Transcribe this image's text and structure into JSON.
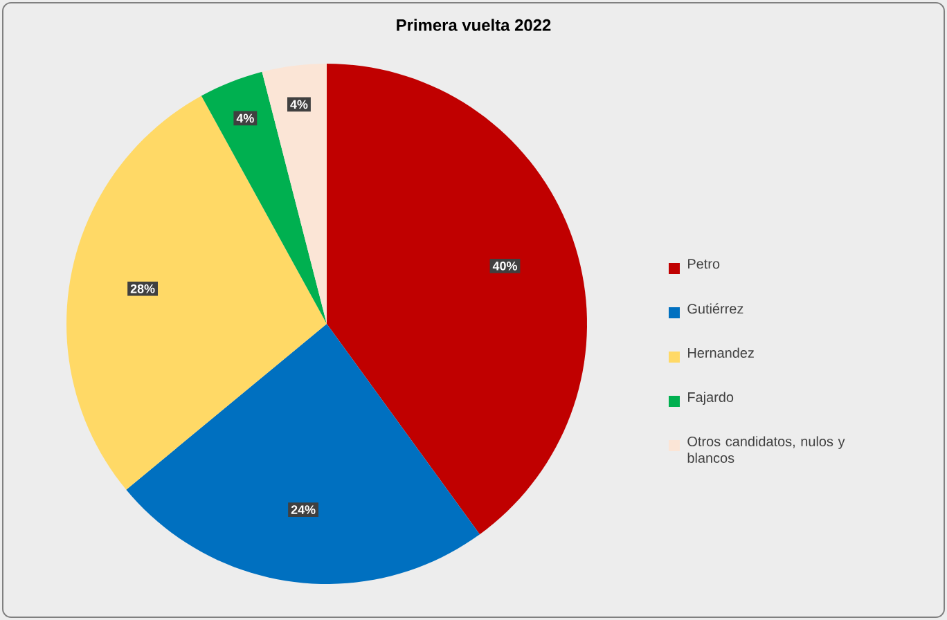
{
  "chart_data": {
    "type": "pie",
    "title": "Primera vuelta 2022",
    "categories": [
      "Petro",
      "Gutiérrez",
      "Hernandez",
      "Fajardo",
      "Otros candidatos, nulos y blancos"
    ],
    "values": [
      40,
      24,
      28,
      4,
      4
    ],
    "colors": [
      "#c00000",
      "#0070c0",
      "#ffd966",
      "#00b050",
      "#fbe5d6"
    ],
    "value_labels": [
      "40%",
      "24%",
      "28%",
      "4%",
      "4%"
    ],
    "legend": "right"
  }
}
